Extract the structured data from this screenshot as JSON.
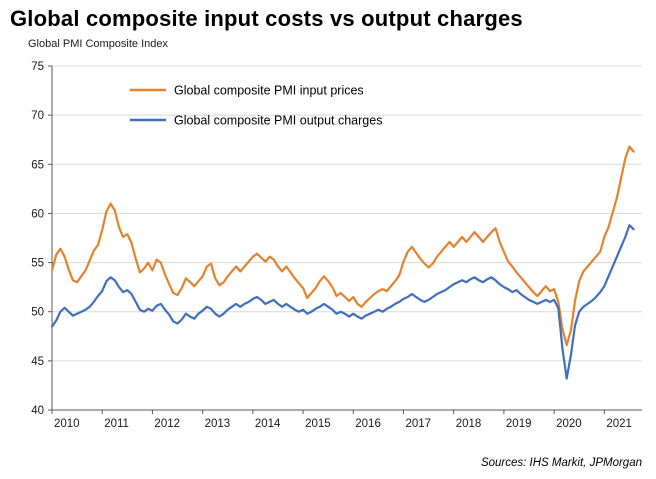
{
  "title": "Global composite input costs vs output charges",
  "subtitle": "Global PMI Composite  Index",
  "source": "Sources: IHS Markit, JPMorgan",
  "colors": {
    "input_prices": "#E8812D",
    "output_charges": "#3F6FBF",
    "gridline": "#d9d9d9",
    "axis": "#595959",
    "tick_text": "#1a1a1a"
  },
  "chart_data": {
    "type": "line",
    "title": "Global composite input costs vs output charges",
    "subtitle": "Global PMI Composite Index",
    "x_start_year": 2010,
    "points_per_year": 12,
    "x_domain": [
      2010,
      2021.75
    ],
    "xticks": [
      2010,
      2011,
      2012,
      2013,
      2014,
      2015,
      2016,
      2017,
      2018,
      2019,
      2020,
      2021
    ],
    "ylim": [
      40,
      75
    ],
    "yticks": [
      40,
      45,
      50,
      55,
      60,
      65,
      70,
      75
    ],
    "grid": true,
    "legend_position": "top-left-inside",
    "series": [
      {
        "name": "Global composite PMI input prices",
        "color": "#E8812D",
        "values": [
          54.2,
          55.8,
          56.4,
          55.6,
          54.3,
          53.2,
          53.0,
          53.6,
          54.2,
          55.2,
          56.2,
          56.8,
          58.3,
          60.2,
          61.0,
          60.3,
          58.6,
          57.6,
          57.9,
          57.0,
          55.4,
          54.0,
          54.4,
          55.0,
          54.2,
          55.3,
          55.0,
          53.8,
          52.8,
          51.9,
          51.7,
          52.4,
          53.4,
          53.0,
          52.6,
          53.1,
          53.6,
          54.6,
          54.9,
          53.4,
          52.7,
          53.0,
          53.6,
          54.1,
          54.6,
          54.1,
          54.6,
          55.1,
          55.6,
          55.9,
          55.5,
          55.1,
          55.6,
          55.3,
          54.6,
          54.1,
          54.6,
          54.0,
          53.4,
          52.9,
          52.4,
          51.4,
          51.9,
          52.4,
          53.1,
          53.6,
          53.1,
          52.5,
          51.6,
          51.9,
          51.5,
          51.1,
          51.5,
          50.8,
          50.5,
          51.0,
          51.4,
          51.8,
          52.1,
          52.3,
          52.1,
          52.6,
          53.1,
          53.7,
          55.1,
          56.1,
          56.6,
          56.0,
          55.4,
          54.9,
          54.5,
          54.9,
          55.6,
          56.1,
          56.6,
          57.1,
          56.6,
          57.1,
          57.6,
          57.1,
          57.6,
          58.1,
          57.6,
          57.1,
          57.6,
          58.1,
          58.5,
          57.1,
          56.1,
          55.1,
          54.6,
          54.0,
          53.5,
          53.0,
          52.5,
          52.0,
          51.6,
          52.1,
          52.6,
          52.1,
          52.3,
          51.0,
          48.2,
          46.6,
          48.1,
          51.1,
          53.1,
          54.1,
          54.6,
          55.1,
          55.6,
          56.1,
          57.6,
          58.6,
          60.1,
          61.6,
          63.6,
          65.6,
          66.8,
          66.3
        ]
      },
      {
        "name": "Global composite PMI output charges",
        "color": "#3F6FBF",
        "values": [
          48.5,
          49.1,
          50.0,
          50.4,
          50.0,
          49.6,
          49.8,
          50.0,
          50.2,
          50.5,
          51.0,
          51.6,
          52.1,
          53.1,
          53.5,
          53.2,
          52.5,
          52.0,
          52.2,
          51.8,
          51.0,
          50.2,
          50.0,
          50.3,
          50.1,
          50.6,
          50.8,
          50.2,
          49.7,
          49.0,
          48.8,
          49.2,
          49.8,
          49.5,
          49.3,
          49.8,
          50.1,
          50.5,
          50.3,
          49.8,
          49.5,
          49.8,
          50.2,
          50.5,
          50.8,
          50.5,
          50.8,
          51.0,
          51.3,
          51.5,
          51.2,
          50.8,
          51.0,
          51.2,
          50.8,
          50.5,
          50.8,
          50.5,
          50.2,
          50.0,
          50.2,
          49.8,
          50.0,
          50.3,
          50.5,
          50.8,
          50.5,
          50.2,
          49.8,
          50.0,
          49.8,
          49.5,
          49.8,
          49.5,
          49.3,
          49.6,
          49.8,
          50.0,
          50.2,
          50.0,
          50.3,
          50.5,
          50.8,
          51.0,
          51.3,
          51.5,
          51.8,
          51.5,
          51.2,
          51.0,
          51.2,
          51.5,
          51.8,
          52.0,
          52.2,
          52.5,
          52.8,
          53.0,
          53.2,
          53.0,
          53.3,
          53.5,
          53.2,
          53.0,
          53.3,
          53.5,
          53.2,
          52.8,
          52.5,
          52.3,
          52.0,
          52.2,
          51.8,
          51.5,
          51.2,
          51.0,
          50.8,
          51.0,
          51.2,
          51.0,
          51.2,
          50.4,
          46.2,
          43.2,
          45.6,
          48.6,
          50.0,
          50.5,
          50.8,
          51.1,
          51.5,
          52.0,
          52.6,
          53.6,
          54.6,
          55.6,
          56.6,
          57.6,
          58.8,
          58.4
        ]
      }
    ]
  }
}
